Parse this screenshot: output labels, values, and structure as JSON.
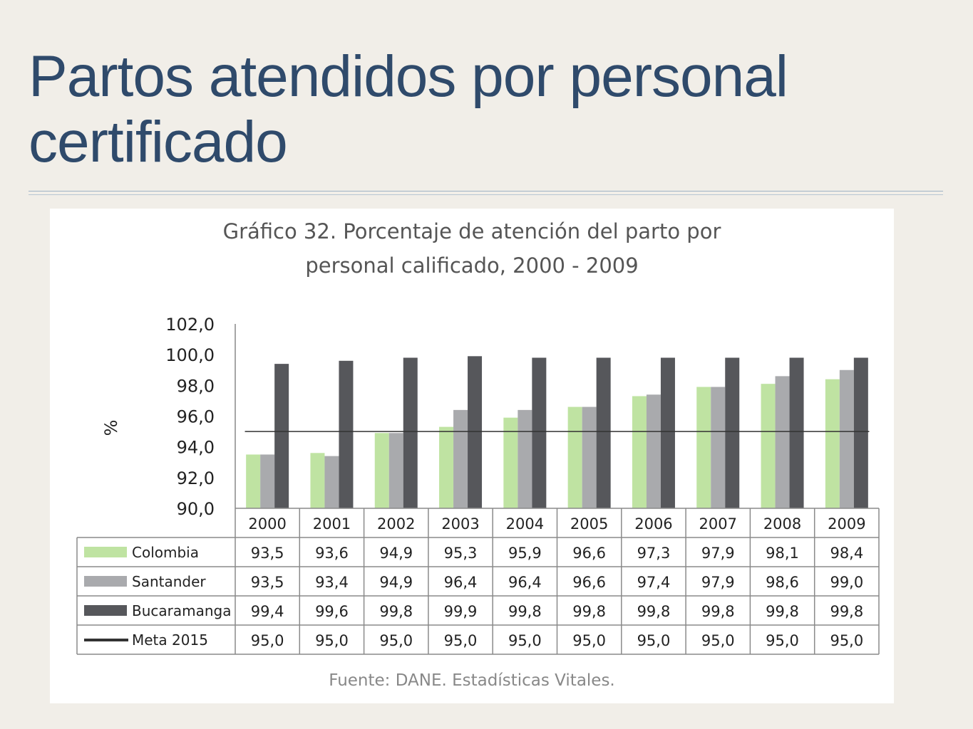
{
  "slide": {
    "title": "Partos atendidos por personal certificado"
  },
  "chart_data": {
    "type": "bar",
    "title_line1": "Gráfico 32. Porcentaje de atención del parto por",
    "title_line2": "personal calificado, 2000 - 2009",
    "ylabel": "%",
    "source": "Fuente: DANE. Estadísticas Vitales.",
    "ylim": [
      90,
      102
    ],
    "yticks": [
      "90,0",
      "92,0",
      "94,0",
      "96,0",
      "98,0",
      "100,0",
      "102,0"
    ],
    "categories": [
      "2000",
      "2001",
      "2002",
      "2003",
      "2004",
      "2005",
      "2006",
      "2007",
      "2008",
      "2009"
    ],
    "series": [
      {
        "name": "Colombia",
        "kind": "bar",
        "color": "#bfe3a2",
        "values": [
          93.5,
          93.6,
          94.9,
          95.3,
          95.9,
          96.6,
          97.3,
          97.9,
          98.1,
          98.4
        ],
        "labels": [
          "93,5",
          "93,6",
          "94,9",
          "95,3",
          "95,9",
          "96,6",
          "97,3",
          "97,9",
          "98,1",
          "98,4"
        ]
      },
      {
        "name": "Santander",
        "kind": "bar",
        "color": "#a9aaad",
        "values": [
          93.5,
          93.4,
          94.9,
          96.4,
          96.4,
          96.6,
          97.4,
          97.9,
          98.6,
          99.0
        ],
        "labels": [
          "93,5",
          "93,4",
          "94,9",
          "96,4",
          "96,4",
          "96,6",
          "97,4",
          "97,9",
          "98,6",
          "99,0"
        ]
      },
      {
        "name": "Bucaramanga",
        "kind": "bar",
        "color": "#56575b",
        "values": [
          99.4,
          99.6,
          99.8,
          99.9,
          99.8,
          99.8,
          99.8,
          99.8,
          99.8,
          99.8
        ],
        "labels": [
          "99,4",
          "99,6",
          "99,8",
          "99,9",
          "99,8",
          "99,8",
          "99,8",
          "99,8",
          "99,8",
          "99,8"
        ]
      },
      {
        "name": "Meta 2015",
        "kind": "line",
        "color": "#333333",
        "values": [
          95.0,
          95.0,
          95.0,
          95.0,
          95.0,
          95.0,
          95.0,
          95.0,
          95.0,
          95.0
        ],
        "labels": [
          "95,0",
          "95,0",
          "95,0",
          "95,0",
          "95,0",
          "95,0",
          "95,0",
          "95,0",
          "95,0",
          "95,0"
        ]
      }
    ],
    "legend": "data-table",
    "grid": false
  }
}
